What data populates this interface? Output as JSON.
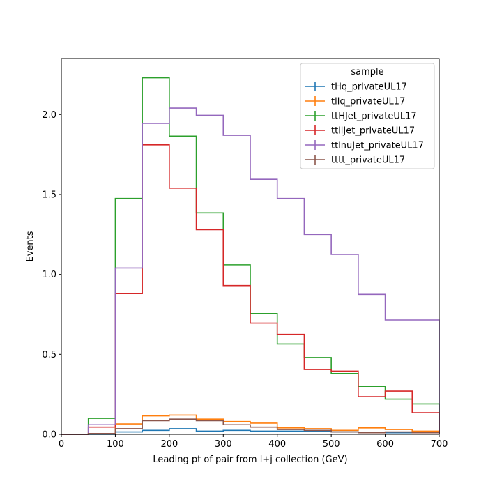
{
  "chart_data": {
    "type": "step-histogram",
    "xlabel": "Leading pt of pair from l+j collection (GeV)",
    "ylabel": "Events",
    "xlim": [
      0,
      700
    ],
    "ylim": [
      0,
      2.35
    ],
    "x_ticks": [
      "0",
      "100",
      "200",
      "300",
      "400",
      "500",
      "600",
      "700"
    ],
    "y_ticks": [
      "0.0",
      "0.5",
      "1.0",
      "1.5",
      "2.0"
    ],
    "bin_edges": [
      0,
      50,
      100,
      150,
      200,
      250,
      300,
      350,
      400,
      450,
      500,
      550,
      600,
      650,
      700
    ],
    "legend": {
      "title": "sample",
      "position": "top-right"
    },
    "series": [
      {
        "name": "tHq_privateUL17",
        "color": "#1f77b4",
        "values": [
          0.0,
          0.0,
          0.015,
          0.025,
          0.035,
          0.02,
          0.025,
          0.02,
          0.02,
          0.02,
          0.015,
          0.01,
          0.01,
          0.01
        ]
      },
      {
        "name": "tllq_privateUL17",
        "color": "#ff7f0e",
        "values": [
          0.0,
          0.005,
          0.065,
          0.115,
          0.12,
          0.095,
          0.08,
          0.07,
          0.04,
          0.035,
          0.025,
          0.04,
          0.03,
          0.02
        ]
      },
      {
        "name": "ttHJet_privateUL17",
        "color": "#2ca02c",
        "values": [
          0.0,
          0.1,
          1.475,
          2.23,
          1.865,
          1.385,
          1.06,
          0.755,
          0.565,
          0.48,
          0.38,
          0.3,
          0.22,
          0.19
        ]
      },
      {
        "name": "ttllJet_privateUL17",
        "color": "#d62728",
        "values": [
          0.0,
          0.045,
          0.88,
          1.81,
          1.54,
          1.28,
          0.93,
          0.695,
          0.625,
          0.405,
          0.395,
          0.235,
          0.27,
          0.135
        ]
      },
      {
        "name": "ttlnuJet_privateUL17",
        "color": "#9467bd",
        "values": [
          0.0,
          0.06,
          1.04,
          1.945,
          2.04,
          1.995,
          1.87,
          1.595,
          1.475,
          1.25,
          1.125,
          0.875,
          0.715,
          0.715
        ]
      },
      {
        "name": "tttt_privateUL17",
        "color": "#8c564b",
        "values": [
          0.0,
          0.005,
          0.035,
          0.085,
          0.095,
          0.085,
          0.06,
          0.045,
          0.03,
          0.025,
          0.015,
          0.01,
          0.015,
          0.01
        ]
      }
    ]
  }
}
